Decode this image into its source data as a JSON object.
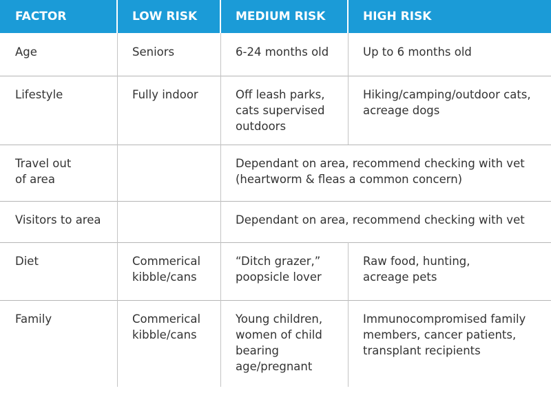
{
  "table": {
    "header": [
      "FACTOR",
      "LOW RISK",
      "MEDIUM RISK",
      "HIGH RISK"
    ],
    "rows": [
      [
        {
          "lines": [
            "Age"
          ]
        },
        {
          "lines": [
            "Seniors"
          ]
        },
        {
          "lines": [
            "6-24 months old"
          ]
        },
        {
          "lines": [
            "Up to 6 months old"
          ]
        }
      ],
      [
        {
          "lines": [
            "Lifestyle"
          ]
        },
        {
          "lines": [
            "Fully indoor"
          ]
        },
        {
          "lines": [
            "Off leash parks,",
            "cats supervised",
            "outdoors"
          ]
        },
        {
          "lines": [
            "Hiking/camping/outdoor cats,",
            "acreage dogs"
          ]
        }
      ],
      [
        {
          "lines": [
            "Travel out",
            "of area"
          ]
        },
        {
          "lines": []
        },
        {
          "lines": [
            "Dependant on area, recommend checking with vet",
            "(heartworm & fleas a common concern)"
          ],
          "span": 2
        }
      ],
      [
        {
          "lines": [
            "Visitors to area"
          ]
        },
        {
          "lines": []
        },
        {
          "lines": [
            "Dependant on area, recommend checking with vet"
          ],
          "span": 2
        }
      ],
      [
        {
          "lines": [
            "Diet"
          ]
        },
        {
          "lines": [
            "Commerical",
            "kibble/cans"
          ]
        },
        {
          "lines": [
            "“Ditch grazer,”",
            "poopsicle lover"
          ]
        },
        {
          "lines": [
            "Raw food, hunting,",
            "acreage pets"
          ]
        }
      ],
      [
        {
          "lines": [
            "Family"
          ]
        },
        {
          "lines": [
            "Commerical",
            "kibble/cans"
          ]
        },
        {
          "lines": [
            "Young children,",
            "women of child",
            "bearing",
            "age/pregnant"
          ]
        },
        {
          "lines": [
            "Immunocompromised family",
            "members, cancer patients,",
            "transplant recipients"
          ]
        }
      ]
    ]
  }
}
